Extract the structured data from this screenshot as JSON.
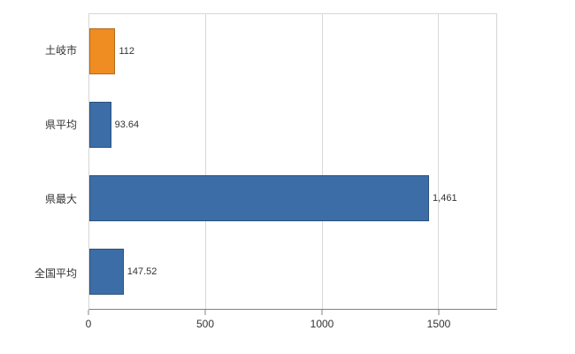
{
  "chart_data": {
    "type": "bar",
    "orientation": "horizontal",
    "title": "",
    "xlabel": "",
    "ylabel": "",
    "categories": [
      "土岐市",
      "県平均",
      "県最大",
      "全国平均"
    ],
    "values": [
      112,
      93.64,
      1461,
      147.52
    ],
    "value_labels": [
      "112",
      "93.64",
      "1,461",
      "147.52"
    ],
    "bar_colors": [
      "#ef8c22",
      "#3c6da6",
      "#3c6da6",
      "#3c6da6"
    ],
    "xlim": [
      0,
      1750
    ],
    "x_ticks": [
      0,
      500,
      1000,
      1500
    ],
    "x_tick_labels": [
      "0",
      "500",
      "1000",
      "1500"
    ],
    "grid": true,
    "legend": false
  },
  "colors": {
    "highlight_bar": "#ef8c22",
    "default_bar": "#3c6da6",
    "gridline": "#d9d9d9",
    "axis": "#808080",
    "text": "#333333",
    "background": "#ffffff"
  }
}
